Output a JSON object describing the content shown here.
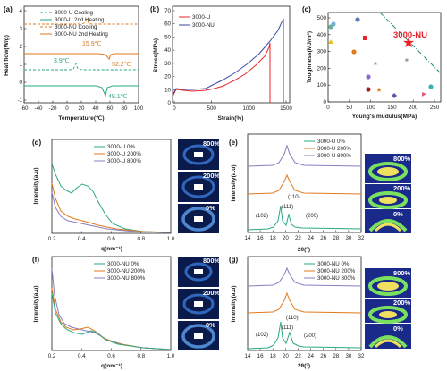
{
  "panels": {
    "a": {
      "label": "(a)",
      "xlabel": "Temperature(℃)",
      "ylabel": "Heat flow(W/g)",
      "xticks": [
        "-60",
        "-40",
        "-20",
        "0",
        "20",
        "40",
        "60",
        "80",
        "100"
      ],
      "yticks": [
        "-1",
        "0",
        "1",
        "2",
        "3",
        "4"
      ],
      "legend": [
        "3000-U Cooling",
        "3000-U 2nd Heating",
        "3000-NU Cooling",
        "3000-NU 2nd Heating"
      ],
      "annotations": [
        "15.9℃",
        "52.2℃",
        "3.9℃",
        "49.1℃"
      ],
      "colors": {
        "u": "#2aa886",
        "nu": "#e07a1c"
      }
    },
    "b": {
      "label": "(b)",
      "xlabel": "Strain(%)",
      "ylabel": "Stress(MPa)",
      "xticks": [
        "0",
        "500",
        "1000",
        "1500"
      ],
      "yticks": [
        "0",
        "10",
        "20",
        "30",
        "40",
        "50",
        "60",
        "70"
      ],
      "legend": [
        "3000-U",
        "3000-NU"
      ],
      "colors": {
        "u": "#e8242a",
        "nu": "#3a4aa8"
      }
    },
    "c": {
      "label": "(c)",
      "xlabel": "Young's mudulus(MPa)",
      "ylabel": "Toughness(MJ/m³)",
      "xticks": [
        "0",
        "50",
        "100",
        "150",
        "200",
        "250"
      ],
      "yticks": [
        "0",
        "100",
        "200",
        "300",
        "400",
        "500"
      ],
      "highlight": "3000-NU"
    },
    "d": {
      "label": "(d)",
      "xlabel": "q(nm⁻¹)",
      "ylabel": "Intensity(a.u)",
      "xticks": [
        "0.2",
        "0.4",
        "0.6",
        "0.8",
        "1.0"
      ],
      "legend": [
        "3000-U 0%",
        "3000-U 200%",
        "3000-U 800%"
      ],
      "saxs": [
        "800%",
        "200%",
        "0%"
      ]
    },
    "e": {
      "label": "(e)",
      "xlabel": "2θ(°)",
      "ylabel": "Intensity(a.u)",
      "xticks": [
        "14",
        "16",
        "18",
        "20",
        "22",
        "24",
        "26",
        "28",
        "30",
        "32"
      ],
      "legend": [
        "3000-U 0%",
        "3000-U 200%",
        "3000-U 800%"
      ],
      "peaks": [
        "(102)",
        "(110)",
        "(111)",
        "(200)"
      ],
      "waxs": [
        "800%",
        "200%",
        "0%"
      ]
    },
    "f": {
      "label": "(f)",
      "xlabel": "q(nm⁻¹)",
      "ylabel": "Intensity(a.u)",
      "xticks": [
        "0.2",
        "0.4",
        "0.6",
        "0.8",
        "1.0"
      ],
      "legend": [
        "3000-NU 0%",
        "3000-NU 200%",
        "3000-NU 800%"
      ],
      "saxs": [
        "800%",
        "200%",
        "0%"
      ]
    },
    "g": {
      "label": "(g)",
      "xlabel": "2θ(°)",
      "ylabel": "Intensity(a.u)",
      "xticks": [
        "14",
        "16",
        "18",
        "20",
        "22",
        "24",
        "26",
        "28",
        "30",
        "32"
      ],
      "legend": [
        "3000-NU 0%",
        "3000-NU 200%",
        "3000-NU 800%"
      ],
      "peaks": [
        "(102)",
        "(110)",
        "(111)",
        "(200)"
      ],
      "waxs": [
        "800%",
        "200%",
        "0%"
      ]
    }
  },
  "colors": {
    "green": "#2aa886",
    "orange": "#e07a1c",
    "purple": "#8a7cc0"
  }
}
